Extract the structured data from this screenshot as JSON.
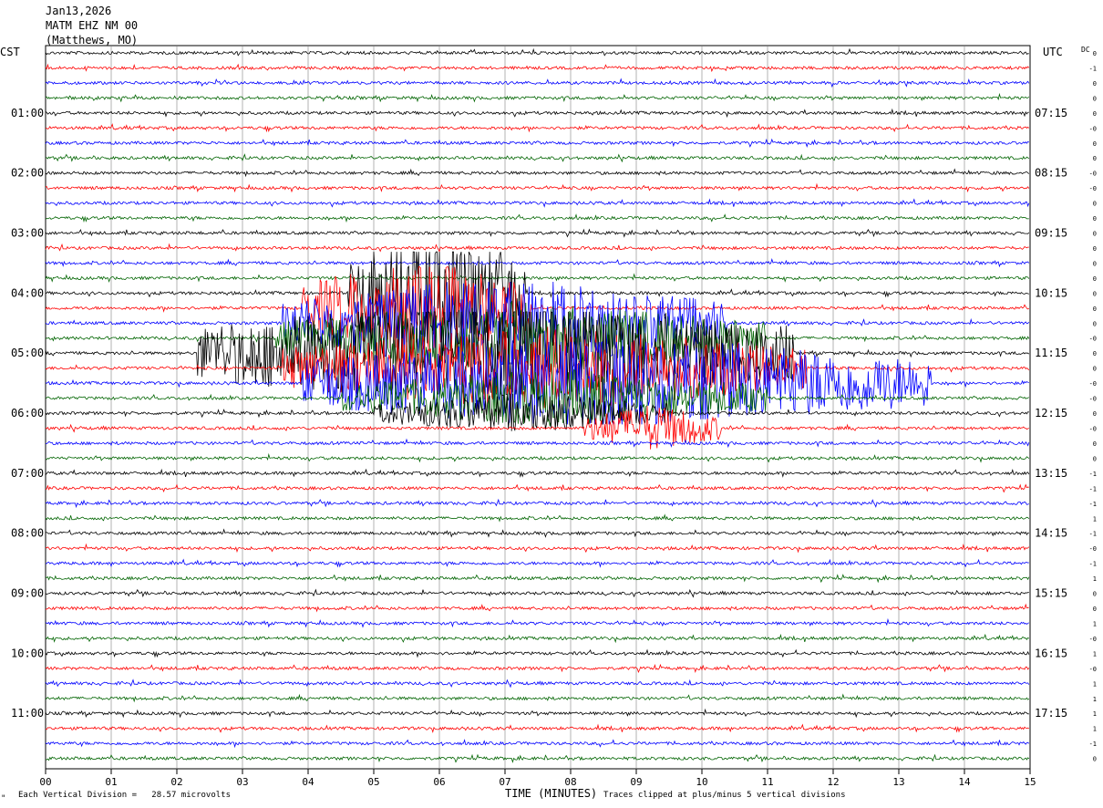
{
  "header": {
    "date": "Jan13,2026",
    "station": "MATM EHZ NM 00",
    "location": "(Matthews, MO)"
  },
  "left_axis_label": "CST",
  "right_axis_label": "UTC",
  "dc_label": "DC",
  "footer": {
    "scale_text": "Each Vertical Division =   28.57 microvolts",
    "xlabel": "TIME (MINUTES)",
    "clip_text": "Traces clipped at plus/minus 5 vertical divisions",
    "corner_mark": "\""
  },
  "colors": {
    "trace_cycle": [
      "#000000",
      "#ff0000",
      "#0000ff",
      "#006400"
    ],
    "grid": "#808080"
  },
  "chart_data": {
    "type": "line",
    "title": "",
    "xlabel": "TIME (MINUTES)",
    "xlim": [
      0,
      15
    ],
    "x_ticks": [
      "00",
      "01",
      "02",
      "03",
      "04",
      "05",
      "06",
      "07",
      "08",
      "09",
      "10",
      "11",
      "12",
      "13",
      "14",
      "15"
    ],
    "rows": 48,
    "minutes_per_row": 15,
    "left_time_labels": [
      {
        "row": 4,
        "text": "01:00"
      },
      {
        "row": 8,
        "text": "02:00"
      },
      {
        "row": 12,
        "text": "03:00"
      },
      {
        "row": 16,
        "text": "04:00"
      },
      {
        "row": 20,
        "text": "05:00"
      },
      {
        "row": 24,
        "text": "06:00"
      },
      {
        "row": 28,
        "text": "07:00"
      },
      {
        "row": 32,
        "text": "08:00"
      },
      {
        "row": 36,
        "text": "09:00"
      },
      {
        "row": 40,
        "text": "10:00"
      },
      {
        "row": 44,
        "text": "11:00"
      }
    ],
    "right_time_labels": [
      {
        "row": 4,
        "text": "07:15"
      },
      {
        "row": 8,
        "text": "08:15"
      },
      {
        "row": 12,
        "text": "09:15"
      },
      {
        "row": 16,
        "text": "10:15"
      },
      {
        "row": 20,
        "text": "11:15"
      },
      {
        "row": 24,
        "text": "12:15"
      },
      {
        "row": 28,
        "text": "13:15"
      },
      {
        "row": 32,
        "text": "14:15"
      },
      {
        "row": 36,
        "text": "15:15"
      },
      {
        "row": 40,
        "text": "16:15"
      },
      {
        "row": 44,
        "text": "17:15"
      }
    ],
    "dc_offsets": [
      "0",
      "-1",
      "0",
      "0",
      "0",
      "-0",
      "0",
      "0",
      "-0",
      "-0",
      "0",
      "0",
      "0",
      "0",
      "0",
      "0",
      "0",
      "0",
      "0",
      "-0",
      "0",
      "0",
      "-0",
      "-0",
      "0",
      "-0",
      "0",
      "0",
      "-1",
      "-1",
      "-1",
      "1",
      "-1",
      "-0",
      "-1",
      "1",
      "0",
      "0",
      "1",
      "-0",
      "1",
      "-0",
      "1",
      "1",
      "1",
      "1",
      "-1",
      "0"
    ],
    "event": {
      "description_visible": false,
      "segments": [
        {
          "row": 16,
          "start_min": 4.6,
          "end_min": 7.3,
          "amp": 5.0
        },
        {
          "row": 17,
          "start_min": 3.9,
          "end_min": 7.4,
          "amp": 3.5
        },
        {
          "row": 18,
          "start_min": 3.6,
          "end_min": 10.4,
          "amp": 3.2
        },
        {
          "row": 19,
          "start_min": 3.5,
          "end_min": 11.0,
          "amp": 2.5
        },
        {
          "row": 20,
          "start_min": 2.3,
          "end_min": 11.4,
          "amp": 4.0
        },
        {
          "row": 21,
          "start_min": 3.6,
          "end_min": 11.6,
          "amp": 3.0
        },
        {
          "row": 22,
          "start_min": 3.9,
          "end_min": 13.5,
          "amp": 3.4
        },
        {
          "row": 23,
          "start_min": 4.5,
          "end_min": 11.0,
          "amp": 2.0
        },
        {
          "row": 24,
          "start_min": 5.0,
          "end_min": 9.5,
          "amp": 1.4
        },
        {
          "row": 25,
          "start_min": 8.2,
          "end_min": 10.3,
          "amp": 1.6
        }
      ]
    }
  }
}
